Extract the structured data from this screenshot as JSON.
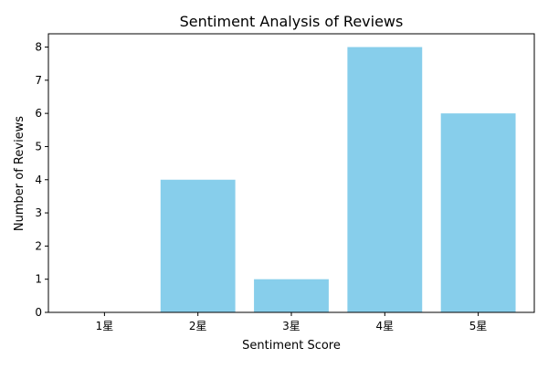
{
  "chart_data": {
    "type": "bar",
    "title": "Sentiment Analysis of Reviews",
    "xlabel": "Sentiment Score",
    "ylabel": "Number of Reviews",
    "categories": [
      "1星",
      "2星",
      "3星",
      "4星",
      "5星"
    ],
    "values": [
      0,
      4,
      1,
      8,
      6
    ],
    "ylim": [
      0,
      8.4
    ],
    "yticks": [
      "0",
      "1",
      "2",
      "3",
      "4",
      "5",
      "6",
      "7",
      "8"
    ],
    "grid": false,
    "legend": "none",
    "bar_color": "#87ceeb",
    "axis_color": "#000000"
  }
}
